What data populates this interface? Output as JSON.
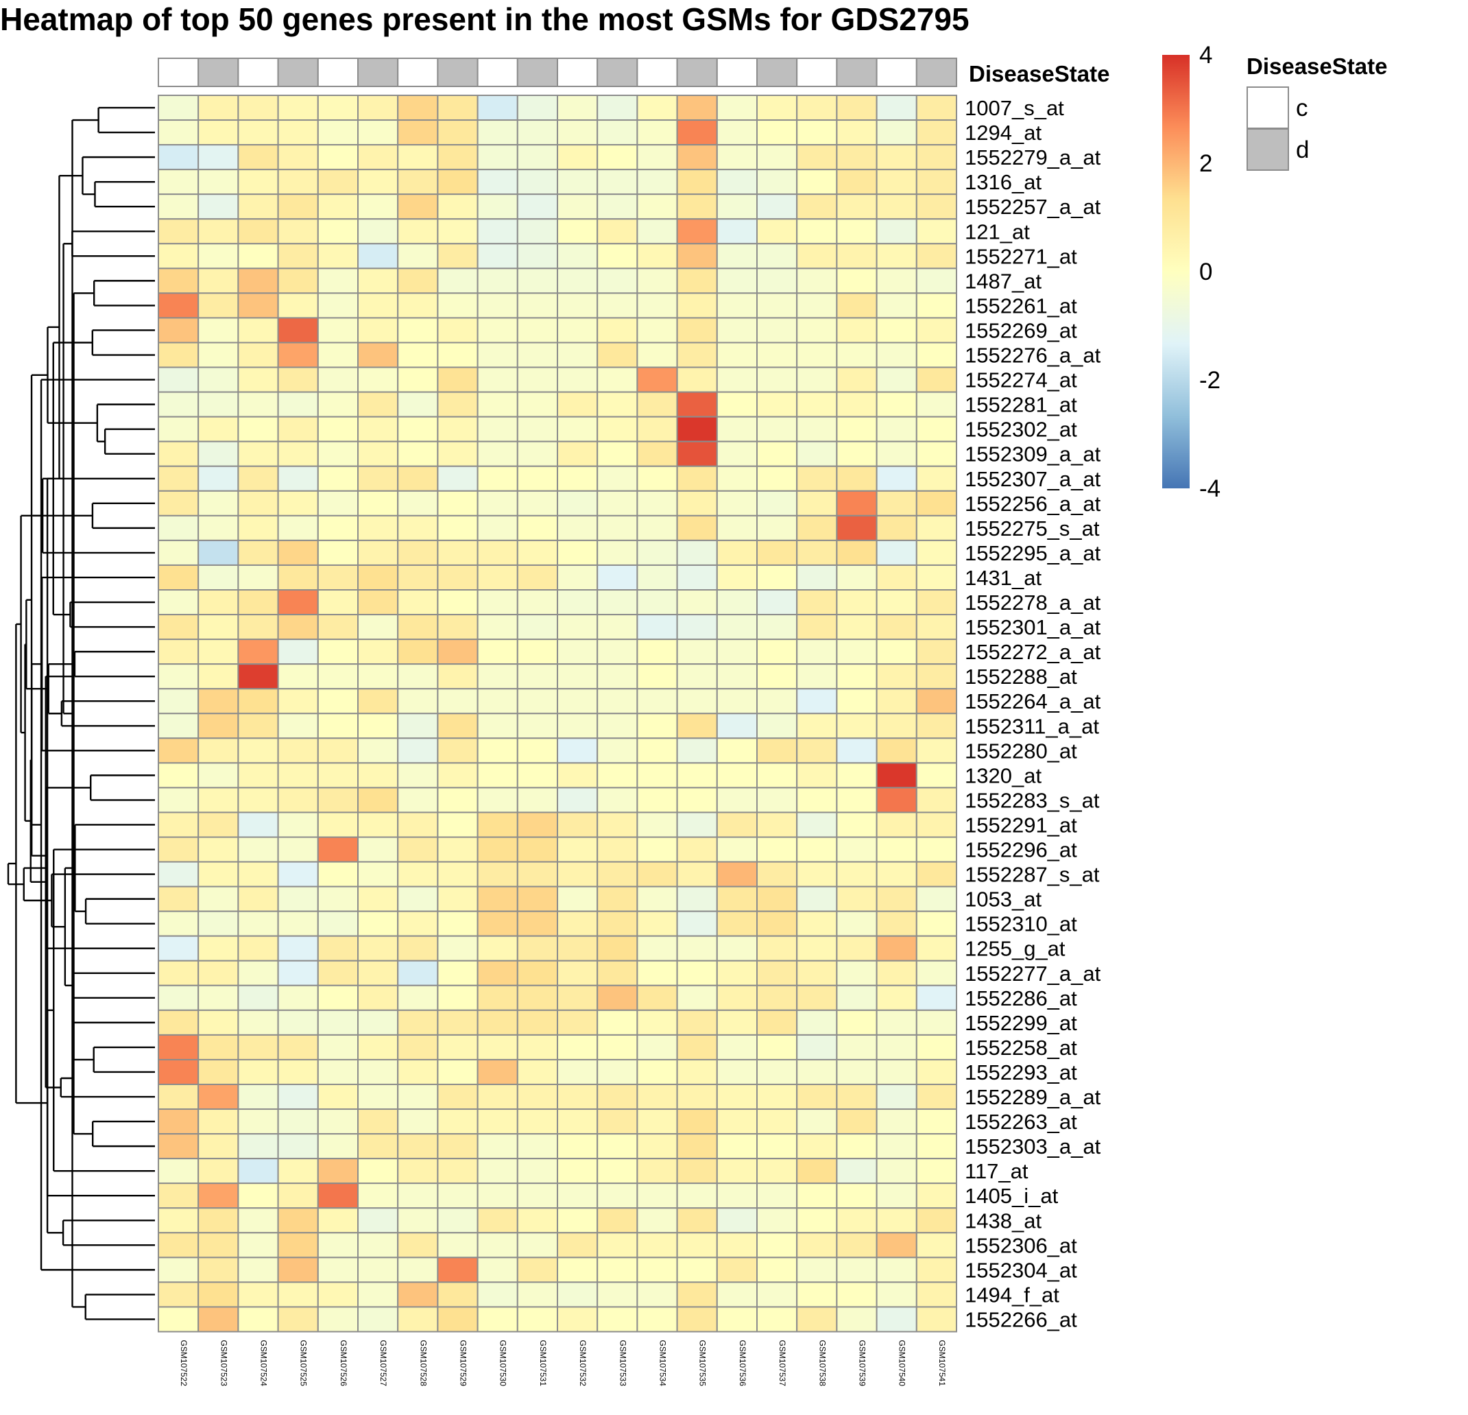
{
  "chart_data": {
    "type": "heatmap",
    "title": "Heatmap of top 50 genes present in the most GSMs for GDS2795",
    "annotation_label": "DiseaseState",
    "legend": {
      "title": "DiseaseState",
      "entries": [
        {
          "label": "c",
          "color": "#ffffff"
        },
        {
          "label": "d",
          "color": "#bebebe"
        }
      ]
    },
    "color_scale": {
      "ticks": [
        "4",
        "2",
        "0",
        "-2",
        "-4"
      ],
      "range": [
        -4,
        4
      ],
      "stops": [
        "#4575b4",
        "#91bfdb",
        "#e0f3f8",
        "#ffffbf",
        "#fee090",
        "#fc8d59",
        "#d73027"
      ]
    },
    "columns": [
      "GSM107522",
      "GSM107523",
      "GSM107524",
      "GSM107525",
      "GSM107526",
      "GSM107527",
      "GSM107528",
      "GSM107529",
      "GSM107530",
      "GSM107531",
      "GSM107532",
      "GSM107533",
      "GSM107534",
      "GSM107535",
      "GSM107536",
      "GSM107537",
      "GSM107538",
      "GSM107539",
      "GSM107540",
      "GSM107541"
    ],
    "disease_state": [
      "c",
      "d",
      "c",
      "d",
      "c",
      "d",
      "c",
      "d",
      "c",
      "d",
      "c",
      "d",
      "c",
      "d",
      "c",
      "d",
      "c",
      "d",
      "c",
      "d"
    ],
    "rows": [
      "1007_s_at",
      "1294_at",
      "1552279_a_at",
      "1316_at",
      "1552257_a_at",
      "121_at",
      "1552271_at",
      "1487_at",
      "1552261_at",
      "1552269_at",
      "1552276_a_at",
      "1552274_at",
      "1552281_at",
      "1552302_at",
      "1552309_a_at",
      "1552307_a_at",
      "1552256_a_at",
      "1552275_s_at",
      "1552295_a_at",
      "1431_at",
      "1552278_a_at",
      "1552301_a_at",
      "1552272_a_at",
      "1552288_at",
      "1552264_a_at",
      "1552311_a_at",
      "1552280_at",
      "1320_at",
      "1552283_s_at",
      "1552291_at",
      "1552296_at",
      "1552287_s_at",
      "1053_at",
      "1552310_at",
      "1255_g_at",
      "1552277_a_at",
      "1552286_at",
      "1552299_at",
      "1552258_at",
      "1552293_at",
      "1552289_a_at",
      "1552263_at",
      "1552303_a_at",
      "117_at",
      "1405_i_at",
      "1438_at",
      "1552306_at",
      "1552304_at",
      "1494_f_at",
      "1552266_at"
    ],
    "values": [
      [
        -0.5,
        0.5,
        0.5,
        0.3,
        0.2,
        0.5,
        1.5,
        1,
        -1.5,
        -0.8,
        -0.3,
        -0.8,
        0.2,
        1.8,
        -0.3,
        0.3,
        0.5,
        0.8,
        -1,
        0.8
      ],
      [
        -0.3,
        0.3,
        0.3,
        0.3,
        -0.2,
        -0.2,
        1.5,
        1,
        -0.5,
        -0.5,
        -0.3,
        -0.5,
        -0.2,
        2.8,
        -0.3,
        0,
        0,
        0.3,
        -0.5,
        0.8
      ],
      [
        -1.5,
        -1.2,
        1,
        0.5,
        0,
        0.5,
        0.3,
        1,
        -0.5,
        -0.5,
        0.3,
        0,
        -0.3,
        1.8,
        -0.3,
        -0.3,
        0.8,
        0.8,
        0.5,
        0.8
      ],
      [
        -0.3,
        -0.3,
        0.3,
        0.5,
        0.8,
        0.3,
        0.8,
        1.3,
        -1,
        -0.8,
        -0.5,
        -0.5,
        -0.5,
        1.2,
        -0.8,
        -0.5,
        0,
        1,
        0.5,
        0.8
      ],
      [
        -0.3,
        -1,
        0.5,
        1,
        0.3,
        -0.2,
        1.5,
        0.3,
        -0.5,
        -1,
        -0.3,
        -0.5,
        -0.2,
        1,
        -0.5,
        -1,
        0.8,
        0.5,
        0.5,
        0.8
      ],
      [
        0.8,
        0.5,
        1,
        0.5,
        0,
        -0.5,
        0.3,
        0.2,
        -1,
        -0.8,
        0,
        0.5,
        -0.5,
        2.5,
        -1.2,
        0.3,
        0,
        0,
        -0.8,
        0.2
      ],
      [
        0.3,
        -0.2,
        0,
        0.8,
        0.3,
        -1.5,
        -0.3,
        0.8,
        -1,
        -0.8,
        -0.5,
        0,
        0.3,
        1.8,
        -0.5,
        -0.5,
        0.5,
        0.5,
        0.3,
        0.8
      ],
      [
        1.5,
        0.5,
        1.8,
        1,
        -0.3,
        0.3,
        1,
        -0.5,
        -0.5,
        -0.5,
        -0.5,
        -0.5,
        -0.3,
        1,
        -0.5,
        -0.5,
        -0.3,
        0,
        -0.3,
        -0.5
      ],
      [
        2.8,
        0.8,
        1.8,
        0.3,
        -0.3,
        0.3,
        0.3,
        -0.2,
        -0.3,
        -0.3,
        -0.3,
        -0.3,
        -0.3,
        0.5,
        -0.3,
        -0.3,
        -0.3,
        1,
        -0.3,
        0
      ],
      [
        1.8,
        -0.2,
        0.3,
        3.2,
        -0.2,
        0.3,
        0,
        0.3,
        -0.2,
        -0.2,
        -0.2,
        0.3,
        -0.2,
        1,
        -0.3,
        -0.3,
        -0.2,
        0.3,
        0,
        0.3
      ],
      [
        1,
        -0.2,
        0.5,
        2.3,
        -0.2,
        1.8,
        0,
        0,
        -0.3,
        -0.3,
        -0.3,
        1,
        -0.2,
        0.8,
        -0.2,
        -0.2,
        -0.2,
        -0.2,
        -0.3,
        0
      ],
      [
        -0.8,
        -0.5,
        0.3,
        0.8,
        -0.3,
        -0.2,
        0,
        1.2,
        -0.3,
        -0.3,
        -0.3,
        -0.2,
        2.5,
        0.5,
        -0.3,
        -0.3,
        -0.3,
        0.5,
        -0.5,
        1
      ],
      [
        -0.5,
        -0.5,
        -0.3,
        -0.5,
        -0.2,
        0.8,
        -0.5,
        0.8,
        -0.2,
        -0.2,
        0.5,
        0.2,
        0.8,
        3.3,
        0,
        0.2,
        0.2,
        0.3,
        0,
        -0.3
      ],
      [
        -0.3,
        0.3,
        0,
        0.5,
        0,
        0.3,
        0,
        0.3,
        -0.3,
        -0.3,
        -0.2,
        0.2,
        0.5,
        3.9,
        -0.3,
        -0.3,
        -0.3,
        0,
        -0.3,
        0
      ],
      [
        0.5,
        -0.8,
        0.3,
        0.3,
        -0.2,
        0.3,
        0,
        0.3,
        -0.3,
        -0.3,
        0.5,
        0,
        1,
        3.5,
        -0.3,
        0,
        -0.5,
        0,
        -0.3,
        0
      ],
      [
        0.8,
        -1.2,
        0.8,
        -1,
        0,
        0.8,
        1,
        -1,
        0,
        0,
        0,
        -0.3,
        0,
        1,
        -0.2,
        0,
        0.8,
        1,
        -1.3,
        0.3
      ],
      [
        0.8,
        -0.3,
        0.5,
        0.3,
        -0.3,
        0,
        -0.3,
        0,
        -0.3,
        -0.3,
        -0.5,
        -0.3,
        -0.3,
        0.5,
        -0.3,
        -0.5,
        0.5,
        2.8,
        0.8,
        1.3
      ],
      [
        -0.5,
        -0.3,
        0.3,
        -0.3,
        0,
        0.3,
        0.3,
        0,
        -0.3,
        0,
        -0.3,
        -0.3,
        -0.3,
        1.2,
        -0.3,
        -0.3,
        1,
        3.3,
        1,
        0.3
      ],
      [
        -0.3,
        -1.8,
        0.8,
        1.5,
        0,
        0.5,
        0.8,
        0.5,
        0.5,
        0.3,
        0,
        -0.3,
        -0.5,
        -0.8,
        0.5,
        1,
        0.8,
        1.3,
        -1.2,
        0.2
      ],
      [
        1.3,
        -0.5,
        -0.3,
        1,
        0.8,
        1.3,
        0.8,
        0.8,
        0.5,
        0.8,
        -0.3,
        -1.3,
        -0.5,
        -1,
        0.2,
        0,
        -0.8,
        -0.3,
        0.5,
        0.2
      ],
      [
        -0.3,
        0.5,
        1,
        2.8,
        0.3,
        1.2,
        0.3,
        0,
        -0.3,
        -0.3,
        -0.5,
        -0.5,
        -0.5,
        -0.3,
        -0.5,
        -1,
        0.8,
        0.3,
        0.2,
        0.8
      ],
      [
        1,
        0.3,
        0.8,
        1.5,
        0.8,
        -0.3,
        1,
        0.8,
        -0.3,
        -0.5,
        -0.3,
        -0.3,
        -1.2,
        -1,
        -0.5,
        -0.5,
        0.8,
        0.3,
        0.8,
        0.5
      ],
      [
        0.5,
        0.3,
        2.5,
        -1,
        0,
        0.3,
        1.3,
        1.8,
        0,
        0,
        -0.3,
        -0.3,
        0,
        -0.3,
        -0.3,
        0,
        -0.3,
        -0.2,
        0,
        0.8
      ],
      [
        -0.3,
        0.3,
        3.8,
        -0.2,
        -0.2,
        -0.2,
        -0.3,
        0.5,
        -0.3,
        -0.3,
        -0.3,
        -0.3,
        0,
        -0.3,
        -0.3,
        0,
        -0.3,
        0,
        0.5,
        0.8
      ],
      [
        -0.5,
        1.5,
        1.3,
        0.3,
        0,
        1,
        -0.3,
        -0.3,
        -0.3,
        -0.3,
        -0.3,
        -0.3,
        -0.3,
        -0.3,
        -0.3,
        -0.3,
        -1.3,
        0,
        0.5,
        1.8
      ],
      [
        -0.5,
        1.5,
        1,
        -0.3,
        0,
        0,
        -0.8,
        1.2,
        -0.3,
        -0.3,
        -0.3,
        -0.3,
        0,
        1.2,
        -1.2,
        -0.5,
        0.3,
        0.3,
        0.5,
        0.8
      ],
      [
        1.5,
        0.5,
        0.3,
        0.5,
        0.5,
        -0.3,
        -1,
        0.8,
        0,
        0,
        -1.3,
        -0.3,
        0,
        -0.8,
        0,
        1,
        0.8,
        -1.3,
        1.2,
        0.3
      ],
      [
        0,
        -0.3,
        0.3,
        0.3,
        0.3,
        0.3,
        -0.3,
        0.3,
        0,
        0,
        0.3,
        0,
        0,
        0,
        0,
        0,
        0.3,
        0,
        3.9,
        0
      ],
      [
        -0.3,
        0.3,
        0.3,
        0.5,
        0.8,
        1.3,
        -0.3,
        0,
        -0.3,
        -0.3,
        -1,
        -0.3,
        0,
        0,
        -0.3,
        -0.3,
        0,
        0,
        3,
        0.5
      ],
      [
        0.5,
        0.8,
        -1.2,
        -0.3,
        0.3,
        0.3,
        0.5,
        0,
        1.3,
        1.5,
        0.8,
        0.5,
        -0.3,
        -0.8,
        0.8,
        0.5,
        -0.8,
        0,
        0.5,
        0.5
      ],
      [
        0.8,
        0.3,
        -0.3,
        -0.3,
        2.8,
        -0.3,
        0.8,
        0.3,
        1.3,
        1.3,
        0.3,
        0.5,
        0,
        0.5,
        -0.2,
        0,
        0,
        -0.2,
        0,
        0
      ],
      [
        -1,
        0.3,
        0.3,
        -1.3,
        0,
        -0.2,
        0.3,
        0.3,
        0.8,
        0.8,
        0.5,
        0.8,
        1,
        0.5,
        2,
        0.8,
        0.3,
        0.3,
        0.3,
        1
      ],
      [
        0.8,
        -0.3,
        0.5,
        -0.5,
        -0.3,
        0.3,
        -0.5,
        0.3,
        1.5,
        1.5,
        -0.3,
        1,
        -0.3,
        -0.8,
        1,
        1.2,
        -0.8,
        0.5,
        0.8,
        -0.5
      ],
      [
        -0.3,
        -0.5,
        -0.3,
        -0.3,
        -0.5,
        0,
        0.3,
        0,
        1.5,
        1.5,
        0.5,
        1,
        0.3,
        -1,
        1,
        1.2,
        0.3,
        -0.3,
        0.8,
        0
      ],
      [
        -1.3,
        0.3,
        0.5,
        -1.3,
        0.8,
        0.5,
        0.8,
        -0.3,
        0.3,
        0.8,
        0.8,
        1.3,
        -0.3,
        -0.3,
        -0.3,
        0.5,
        0.3,
        0.5,
        2,
        0.3
      ],
      [
        0.5,
        0.5,
        -0.3,
        -1.3,
        0.8,
        0.5,
        -1.5,
        0,
        1.5,
        1.3,
        0.5,
        1,
        0,
        0,
        0.3,
        0.8,
        0.5,
        -0.3,
        0.5,
        -0.3
      ],
      [
        -0.5,
        -0.3,
        -0.8,
        -0.3,
        0,
        0.5,
        -0.3,
        0,
        1,
        1,
        0.8,
        1.8,
        1,
        -0.3,
        0.5,
        0.8,
        0.8,
        -0.5,
        0.3,
        -1.3
      ],
      [
        1,
        0.3,
        -0.3,
        -0.5,
        -0.5,
        -0.5,
        0.8,
        0.8,
        1,
        1,
        0.8,
        0,
        0.2,
        0.8,
        0.3,
        1,
        -0.5,
        0,
        -0.3,
        -0.3
      ],
      [
        2.8,
        1,
        0.8,
        0.8,
        -0.3,
        0.3,
        0.8,
        0.3,
        0.3,
        0.3,
        0,
        0,
        -0.3,
        1,
        -0.3,
        0,
        -0.8,
        -0.3,
        -0.3,
        0
      ],
      [
        2.8,
        1,
        0.3,
        0.3,
        -0.3,
        -0.3,
        0.3,
        0,
        1.8,
        0.3,
        -0.3,
        -0.3,
        0,
        0.3,
        -0.3,
        -0.3,
        -0.3,
        -0.3,
        -0.3,
        0.3
      ],
      [
        0.8,
        2.3,
        -0.5,
        -1,
        0.3,
        -0.3,
        -0.3,
        0.8,
        0.5,
        0.5,
        0.5,
        0.8,
        0.5,
        0.5,
        0.3,
        0.3,
        0.8,
        0.8,
        -0.8,
        0.8
      ],
      [
        1.8,
        0.5,
        -0.3,
        -0.5,
        -0.3,
        0.8,
        -0.3,
        0.3,
        0.3,
        0.3,
        0.3,
        0.8,
        0.3,
        1.3,
        0.3,
        0.3,
        -0.3,
        1,
        -0.3,
        0
      ],
      [
        1.8,
        0.5,
        -0.8,
        -0.8,
        -0.3,
        0.8,
        0.8,
        0.8,
        -0.3,
        -0.3,
        0,
        0,
        0.3,
        1.2,
        0,
        0,
        0.3,
        0,
        -0.3,
        0
      ],
      [
        -0.3,
        0.5,
        -1.5,
        0.3,
        1.8,
        0,
        0.5,
        0.5,
        -0.3,
        -0.3,
        0,
        0,
        0.5,
        1,
        0.3,
        0.3,
        1.3,
        -0.8,
        -0.3,
        0
      ],
      [
        0.8,
        2.3,
        0,
        0.5,
        3,
        -0.2,
        -0.3,
        -0.3,
        -0.3,
        -0.3,
        -0.3,
        -0.3,
        -0.3,
        -0.3,
        -0.3,
        -0.3,
        0,
        0,
        -0.3,
        0.3
      ],
      [
        0.3,
        1,
        -0.3,
        1.5,
        0.3,
        -0.8,
        -0.3,
        -0.5,
        0.8,
        0.3,
        0,
        1,
        -0.3,
        1,
        -0.8,
        -0.3,
        0,
        0.3,
        0.3,
        1
      ],
      [
        1,
        1,
        -0.3,
        1.5,
        -0.3,
        -0.3,
        0.8,
        -0.3,
        -0.3,
        -0.3,
        0.8,
        0.3,
        0.3,
        0.3,
        0.3,
        0,
        0.5,
        0.8,
        1.8,
        0.3
      ],
      [
        -0.3,
        0.8,
        -0.3,
        1.8,
        -0.3,
        -0.3,
        -0.3,
        2.8,
        -0.3,
        0.8,
        0,
        0,
        0,
        0,
        0.8,
        0,
        -0.3,
        -0.3,
        -0.3,
        0.5
      ],
      [
        0.8,
        1.3,
        0.3,
        0.3,
        0.3,
        -0.3,
        1.8,
        1,
        -0.5,
        -0.3,
        -0.5,
        -0.3,
        -0.3,
        1,
        -0.3,
        -0.3,
        0,
        0,
        -0.3,
        0.5
      ],
      [
        0,
        1.8,
        0,
        0.8,
        -0.3,
        -0.5,
        0.5,
        1.3,
        0,
        0,
        0.3,
        0,
        0,
        1,
        0,
        0,
        0.8,
        -0.3,
        -1,
        0.5
      ]
    ]
  }
}
